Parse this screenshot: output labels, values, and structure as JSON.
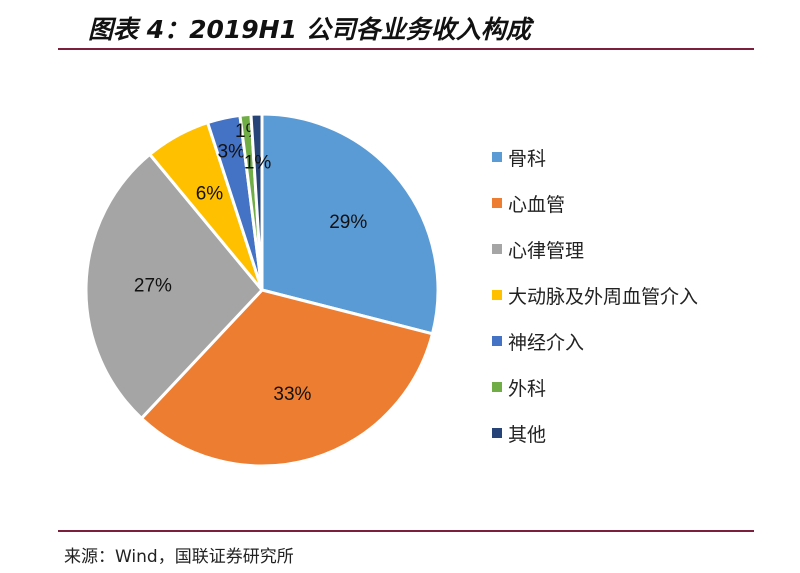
{
  "header": {
    "title": "图表 4：2019H1 公司各业务收入构成"
  },
  "footer": {
    "source": "来源：Wind，国联证券研究所"
  },
  "chart_data": {
    "type": "pie",
    "title": "图表 4：2019H1 公司各业务收入构成",
    "legend_position": "right",
    "slices": [
      {
        "name": "骨科",
        "value": 29,
        "label": "29%",
        "color": "#5b9bd5"
      },
      {
        "name": "心血管",
        "value": 33,
        "label": "33%",
        "color": "#ed7d31"
      },
      {
        "name": "心律管理",
        "value": 27,
        "label": "27%",
        "color": "#a5a5a5"
      },
      {
        "name": "大动脉及外周血管介入",
        "value": 6,
        "label": "6%",
        "color": "#ffc000"
      },
      {
        "name": "神经介入",
        "value": 3,
        "label": "3%",
        "color": "#4472c4"
      },
      {
        "name": "外科",
        "value": 1,
        "label": "1%",
        "color": "#70ad47"
      },
      {
        "name": "其他",
        "value": 1,
        "label": "1%",
        "color": "#264478"
      }
    ]
  }
}
